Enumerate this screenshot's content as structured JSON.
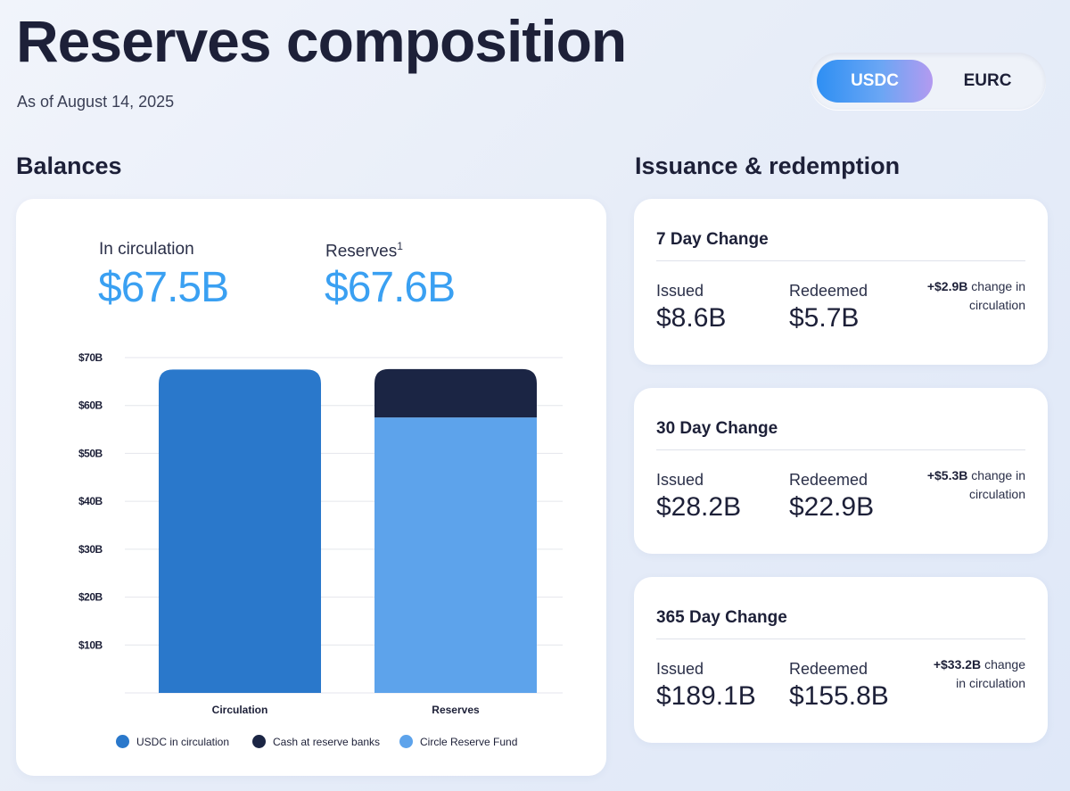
{
  "page": {
    "title": "Reserves composition",
    "as_of": "As of August 14, 2025"
  },
  "currency_toggle": {
    "options": [
      "USDC",
      "EURC"
    ],
    "selected": "USDC"
  },
  "balances": {
    "section_title": "Balances",
    "in_circulation_label": "In circulation",
    "in_circulation_value": "$67.5B",
    "reserves_label": "Reserves",
    "reserves_footnote": "1",
    "reserves_value": "$67.6B"
  },
  "chart_data": {
    "type": "bar",
    "stacked": true,
    "categories": [
      "Circulation",
      "Reserves"
    ],
    "series": [
      {
        "name": "USDC in circulation",
        "color": "#2a78cb",
        "values": [
          67.5,
          0
        ]
      },
      {
        "name": "Circle Reserve Fund",
        "color": "#5da3eb",
        "values": [
          0,
          57.5
        ]
      },
      {
        "name": "Cash at reserve banks",
        "color": "#1b2544",
        "values": [
          0,
          10.1
        ]
      }
    ],
    "legend_order": [
      "USDC in circulation",
      "Cash at reserve banks",
      "Circle Reserve Fund"
    ],
    "y_ticks": [
      10,
      20,
      30,
      40,
      50,
      60,
      70
    ],
    "y_tick_labels": [
      "$10B",
      "$20B",
      "$30B",
      "$40B",
      "$50B",
      "$60B",
      "$70B"
    ],
    "ylim": [
      0,
      70
    ],
    "grid": true,
    "legend_position": "bottom"
  },
  "issuance": {
    "section_title": "Issuance & redemption",
    "cards": [
      {
        "title": "7 Day Change",
        "issued_label": "Issued",
        "issued_value": "$8.6B",
        "redeemed_label": "Redeemed",
        "redeemed_value": "$5.7B",
        "net_change_value": "+$2.9B",
        "net_change_text_1": "change in",
        "net_change_text_2": "circulation"
      },
      {
        "title": "30 Day Change",
        "issued_label": "Issued",
        "issued_value": "$28.2B",
        "redeemed_label": "Redeemed",
        "redeemed_value": "$22.9B",
        "net_change_value": "+$5.3B",
        "net_change_text_1": "change in",
        "net_change_text_2": "circulation"
      },
      {
        "title": "365 Day Change",
        "issued_label": "Issued",
        "issued_value": "$189.1B",
        "redeemed_label": "Redeemed",
        "redeemed_value": "$155.8B",
        "net_change_value": "+$33.2B",
        "net_change_text_1": "change",
        "net_change_text_2": "in circulation"
      }
    ]
  }
}
